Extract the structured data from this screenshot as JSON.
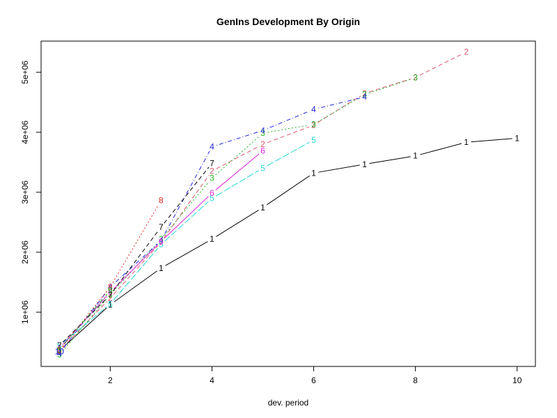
{
  "chart_data": {
    "type": "line",
    "title": "GenIns Development By Origin",
    "xlabel": "dev. period",
    "ylabel": "",
    "xlim": [
      0.64,
      10.36
    ],
    "ylim": [
      95000,
      5520000
    ],
    "x_ticks": [
      2,
      4,
      6,
      8,
      10
    ],
    "y_ticks": [
      {
        "value": 1000000,
        "label": "1e+06"
      },
      {
        "value": 2000000,
        "label": "2e+06"
      },
      {
        "value": 3000000,
        "label": "3e+06"
      },
      {
        "value": 4000000,
        "label": "4e+06"
      },
      {
        "value": 5000000,
        "label": "5e+06"
      }
    ],
    "grid": false,
    "series": [
      {
        "name": "1",
        "color": "#000000",
        "dash": "",
        "x": [
          1,
          2,
          3,
          4,
          5,
          6,
          7,
          8,
          9,
          10
        ],
        "values": [
          357848,
          1124788,
          1735330,
          2218270,
          2745596,
          3319994,
          3466336,
          3606286,
          3833515,
          3901463
        ]
      },
      {
        "name": "2",
        "color": "#DF536B",
        "dash": "6,4",
        "x": [
          1,
          2,
          3,
          4,
          5,
          6,
          7,
          8,
          9
        ],
        "values": [
          352118,
          1236139,
          2170033,
          3353322,
          3799067,
          4120063,
          4647867,
          4914039,
          5339085
        ]
      },
      {
        "name": "3",
        "color": "#22B522",
        "dash": "2,3",
        "x": [
          1,
          2,
          3,
          4,
          5,
          6,
          7,
          8
        ],
        "values": [
          290507,
          1292306,
          2218525,
          3235179,
          3985995,
          4132918,
          4628910,
          4909315
        ]
      },
      {
        "name": "4",
        "color": "#2222E0",
        "dash": "1,3,6,3",
        "x": [
          1,
          2,
          3,
          4,
          5,
          6,
          7
        ],
        "values": [
          310608,
          1418858,
          2195047,
          3757447,
          4029929,
          4381982,
          4588268
        ]
      },
      {
        "name": "5",
        "color": "#22D5D5",
        "dash": "10,3",
        "x": [
          1,
          2,
          3,
          4,
          5,
          6
        ],
        "values": [
          443160,
          1136350,
          2128333,
          2897821,
          3402672,
          3873311
        ]
      },
      {
        "name": "6",
        "color": "#DD22DD",
        "dash": "",
        "x": [
          1,
          2,
          3,
          4,
          5
        ],
        "values": [
          396132,
          1333217,
          2180715,
          2985752,
          3691712
        ]
      },
      {
        "name": "7",
        "color": "#000000",
        "dash": "6,4",
        "x": [
          1,
          2,
          3,
          4
        ],
        "values": [
          440832,
          1288463,
          2419861,
          3483130
        ]
      },
      {
        "name": "8",
        "color": "#DF2222",
        "dash": "2,3",
        "x": [
          1,
          2,
          3
        ],
        "values": [
          359480,
          1421128,
          2864498
        ]
      },
      {
        "name": "9",
        "color": "#22B522",
        "dash": "1,3,6,3",
        "x": [
          1,
          2
        ],
        "values": [
          376686,
          1363294
        ]
      },
      {
        "name": "10",
        "color": "#2222E0",
        "dash": "10,3",
        "x": [
          1
        ],
        "values": [
          344014
        ]
      }
    ]
  }
}
